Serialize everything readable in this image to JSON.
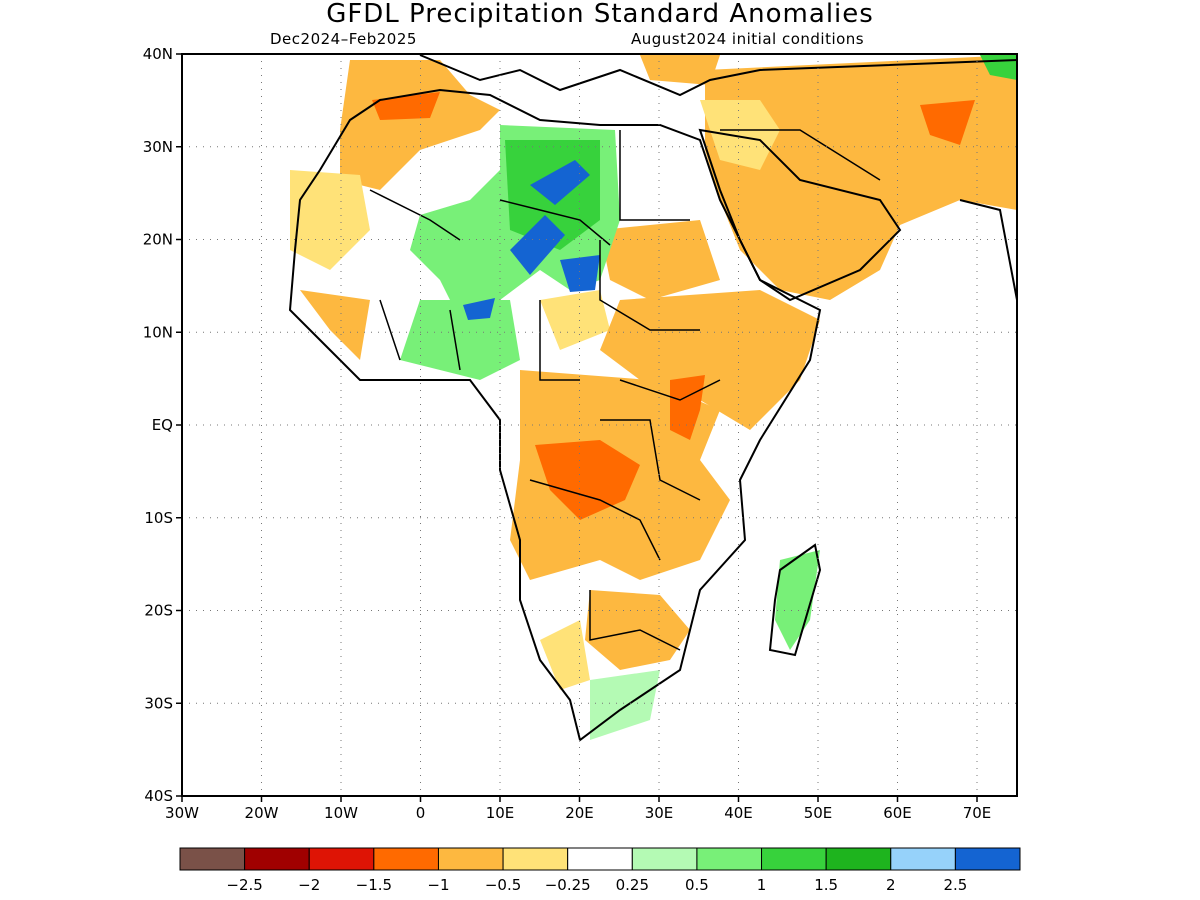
{
  "title": "GFDL Precipitation Standard Anomalies",
  "subtitle_left": "Dec2024–Feb2025",
  "subtitle_right": "August2024 initial conditions",
  "map": {
    "lat_labels": [
      "40N",
      "30N",
      "20N",
      "10N",
      "EQ",
      "10S",
      "20S",
      "30S",
      "40S"
    ],
    "lon_labels": [
      "30W",
      "20W",
      "10W",
      "0",
      "10E",
      "20E",
      "30E",
      "40E",
      "50E",
      "60E",
      "70E"
    ]
  },
  "colorbar": {
    "colors": [
      "#7a5148",
      "#a00000",
      "#de1405",
      "#ff6a00",
      "#fdb840",
      "#ffe278",
      "#ffffff",
      "#b4fab4",
      "#78f078",
      "#37d23c",
      "#1eb41e",
      "#96d2fa",
      "#1464d2"
    ],
    "labels": [
      "−2.5",
      "−2",
      "−1.5",
      "−1",
      "−0.5",
      "−0.25",
      "0.25",
      "0.5",
      "1",
      "1.5",
      "2",
      "2.5"
    ]
  },
  "palette": {
    "dark_orange": "#ff6a00",
    "orange": "#fdb840",
    "light_orange": "#ffe278",
    "light_green": "#b4fab4",
    "green": "#78f078",
    "mid_green": "#37d23c",
    "blue": "#1464d2",
    "light_blue": "#96d2fa"
  }
}
